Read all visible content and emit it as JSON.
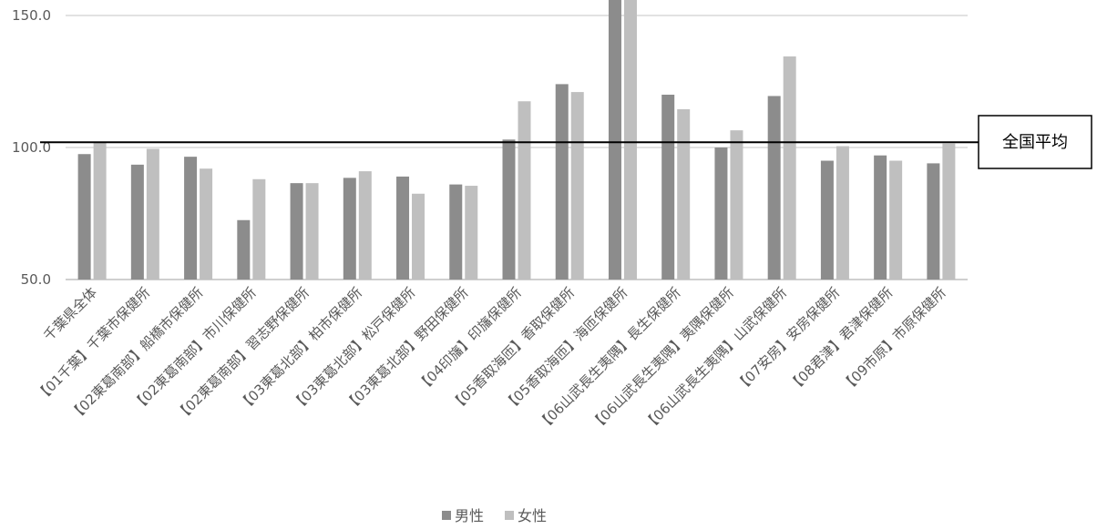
{
  "chart_data": {
    "type": "bar",
    "title": "",
    "xlabel": "",
    "ylabel": "",
    "ylim": [
      50,
      150
    ],
    "yticks": [
      50,
      100,
      150
    ],
    "ytick_labels": [
      "50.0",
      "100.0",
      "150.0"
    ],
    "grid": true,
    "legend_position": "bottom",
    "categories": [
      "千葉県全体",
      "【01千葉】千葉市保健所",
      "【02東葛南部】船橋市保健所",
      "【02東葛南部】市川保健所",
      "【02東葛南部】習志野保健所",
      "【03東葛北部】柏市保健所",
      "【03東葛北部】松戸保健所",
      "【03東葛北部】野田保健所",
      "【04印旛】印旛保健所",
      "【05香取海匝】香取保健所",
      "【05香取海匝】海匝保健所",
      "【06山武長生夷隅】長生保健所",
      "【06山武長生夷隅】夷隅保健所",
      "【06山武長生夷隅】山武保健所",
      "【07安房】安房保健所",
      "【08君津】君津保健所",
      "【09市原】市原保健所"
    ],
    "series": [
      {
        "name": "男性",
        "color": "#8c8c8c",
        "values": [
          97.5,
          93.5,
          96.5,
          72.5,
          86.5,
          88.5,
          89,
          86,
          103,
          124,
          160,
          120,
          100,
          119.5,
          95,
          97,
          94
        ]
      },
      {
        "name": "女性",
        "color": "#bfbfbf",
        "values": [
          102,
          99.5,
          92,
          88,
          86.5,
          91,
          82.5,
          85.5,
          117.5,
          121,
          160,
          114.5,
          106.5,
          134.5,
          100.5,
          95,
          101.5
        ]
      }
    ],
    "reference_line": {
      "label": "全国平均",
      "value": 102
    }
  },
  "colors": {
    "grid": "#d9d9d9",
    "text": "#595959",
    "reference_line": "#000000"
  }
}
